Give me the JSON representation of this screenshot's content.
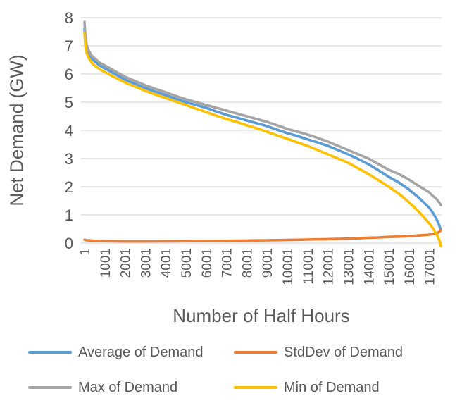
{
  "chart_data": {
    "type": "line",
    "title": "",
    "xlabel": "Number of Half Hours",
    "ylabel": "Net Demand (GW)",
    "xlim": [
      1,
      17568
    ],
    "ylim": [
      0,
      8
    ],
    "y_ticks": [
      0,
      1,
      2,
      3,
      4,
      5,
      6,
      7,
      8
    ],
    "x_tick_positions": [
      1,
      1001,
      2001,
      3001,
      4001,
      5001,
      6001,
      7001,
      8001,
      9001,
      10001,
      11001,
      12001,
      13001,
      14001,
      15001,
      16001,
      17001
    ],
    "x_tick_labels": [
      "1",
      "1001",
      "2001",
      "3001",
      "4001",
      "5001",
      "6001",
      "7001",
      "8001",
      "9001",
      "10001",
      "11001",
      "12001",
      "13001",
      "14001",
      "15001",
      "16001",
      "17001"
    ],
    "grid": "horizontal",
    "gridline_color": "#d9d9d9",
    "text_color": "#595959",
    "legend_position": "bottom",
    "x": [
      1,
      50,
      100,
      200,
      350,
      500,
      750,
      1000,
      1500,
      2000,
      2500,
      3000,
      3500,
      4000,
      4500,
      5000,
      5500,
      6000,
      6500,
      7000,
      7500,
      8000,
      8500,
      9000,
      9500,
      10000,
      10500,
      11000,
      11500,
      12000,
      12500,
      13000,
      13500,
      14000,
      14500,
      15000,
      15500,
      16000,
      16500,
      17000,
      17100,
      17200,
      17300,
      17400,
      17450,
      17500,
      17540,
      17568
    ],
    "series": [
      {
        "name": "Average of Demand",
        "color": "#5B9BD5",
        "values": [
          7.6,
          7.1,
          6.9,
          6.72,
          6.55,
          6.45,
          6.3,
          6.2,
          6.0,
          5.8,
          5.65,
          5.5,
          5.37,
          5.25,
          5.12,
          5.0,
          4.9,
          4.8,
          4.67,
          4.55,
          4.45,
          4.35,
          4.25,
          4.15,
          4.02,
          3.9,
          3.8,
          3.68,
          3.57,
          3.45,
          3.3,
          3.15,
          2.98,
          2.8,
          2.58,
          2.35,
          2.15,
          1.9,
          1.6,
          1.25,
          1.15,
          1.05,
          0.92,
          0.78,
          0.7,
          0.6,
          0.52,
          0.45
        ]
      },
      {
        "name": "StdDev of Demand",
        "color": "#ED7D31",
        "values": [
          0.12,
          0.11,
          0.1,
          0.1,
          0.09,
          0.08,
          0.075,
          0.07,
          0.065,
          0.06,
          0.06,
          0.06,
          0.062,
          0.065,
          0.068,
          0.07,
          0.072,
          0.075,
          0.078,
          0.08,
          0.085,
          0.09,
          0.095,
          0.1,
          0.105,
          0.11,
          0.118,
          0.125,
          0.133,
          0.14,
          0.15,
          0.16,
          0.17,
          0.19,
          0.2,
          0.22,
          0.23,
          0.25,
          0.27,
          0.3,
          0.31,
          0.32,
          0.34,
          0.36,
          0.38,
          0.41,
          0.44,
          0.46
        ]
      },
      {
        "name": "Max of Demand",
        "color": "#A5A5A5",
        "values": [
          7.85,
          7.3,
          7.05,
          6.85,
          6.65,
          6.55,
          6.4,
          6.3,
          6.1,
          5.9,
          5.75,
          5.6,
          5.47,
          5.35,
          5.22,
          5.1,
          5.0,
          4.9,
          4.8,
          4.7,
          4.6,
          4.5,
          4.4,
          4.3,
          4.18,
          4.05,
          3.95,
          3.85,
          3.73,
          3.6,
          3.45,
          3.3,
          3.15,
          3.0,
          2.8,
          2.6,
          2.45,
          2.25,
          2.02,
          1.8,
          1.72,
          1.66,
          1.6,
          1.52,
          1.48,
          1.43,
          1.39,
          1.35
        ]
      },
      {
        "name": "Min of Demand",
        "color": "#FFC000",
        "values": [
          7.45,
          6.95,
          6.75,
          6.58,
          6.4,
          6.3,
          6.17,
          6.07,
          5.88,
          5.7,
          5.55,
          5.4,
          5.27,
          5.15,
          5.02,
          4.9,
          4.77,
          4.65,
          4.52,
          4.4,
          4.3,
          4.18,
          4.07,
          3.95,
          3.82,
          3.7,
          3.57,
          3.45,
          3.3,
          3.15,
          3.0,
          2.85,
          2.65,
          2.45,
          2.23,
          2.0,
          1.75,
          1.45,
          1.1,
          0.7,
          0.6,
          0.5,
          0.38,
          0.25,
          0.18,
          0.08,
          0.0,
          -0.1
        ]
      }
    ]
  }
}
